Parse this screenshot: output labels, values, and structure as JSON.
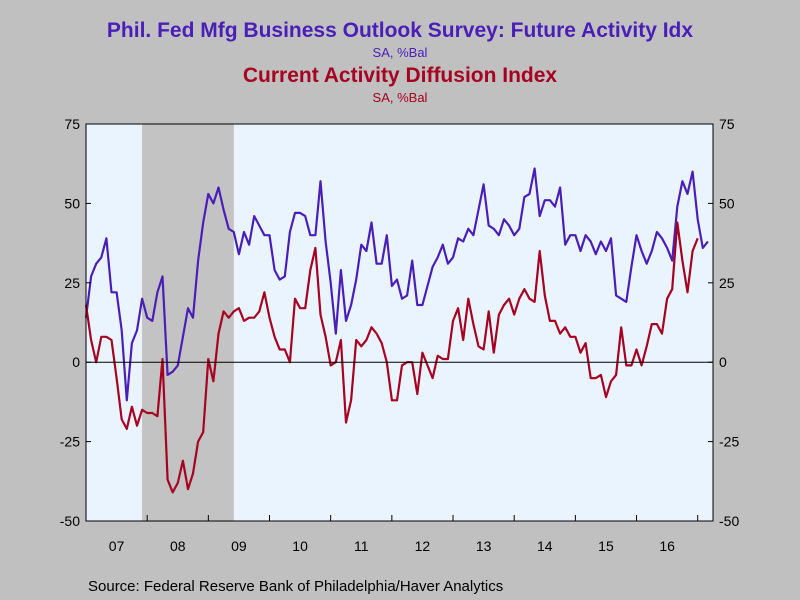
{
  "chart_data": {
    "type": "line",
    "title": "Phil. Fed Mfg Business Outlook Survey: Future Activity Idx",
    "title_subtitle": "SA, %Bal",
    "title2": "Current Activity Diffusion Index",
    "title2_subtitle": "SA, %Bal",
    "source": "Source:  Federal Reserve Bank of Philadelphia/Haver Analytics",
    "x_tick_labels": [
      "07",
      "08",
      "09",
      "10",
      "11",
      "12",
      "13",
      "14",
      "15",
      "16"
    ],
    "y_tick_labels": [
      "75",
      "50",
      "25",
      "0",
      "-25",
      "-50"
    ],
    "ylim": [
      -50,
      75
    ],
    "x_start": "2007-01",
    "x_end": "2017-04",
    "recession": {
      "start": "2007-12",
      "end": "2009-06"
    },
    "colors": {
      "future": "#4a1fb8",
      "current": "#a50021",
      "plot_bg": "#eaf4ff",
      "recession": "#c3c3c3",
      "title1": "#4a1fb8",
      "title2": "#a50021"
    },
    "series": [
      {
        "name": "Phil. Fed Mfg Business Outlook Survey: Future Activity Idx",
        "values": [
          14,
          27,
          31,
          33,
          39,
          22,
          22,
          10,
          -12,
          6,
          10,
          20,
          14,
          13,
          22,
          27,
          -4,
          -3,
          -1,
          8,
          17,
          14,
          32,
          44,
          53,
          50,
          55,
          48,
          42,
          41,
          34,
          41,
          37,
          46,
          43,
          40,
          40,
          29,
          26,
          27,
          41,
          47,
          47,
          46,
          40,
          40,
          57,
          38,
          25,
          9,
          29,
          13,
          18,
          26,
          37,
          35,
          44,
          31,
          31,
          40,
          24,
          26,
          20,
          21,
          32,
          18,
          18,
          24,
          30,
          33,
          37,
          31,
          33,
          39,
          38,
          42,
          40,
          48,
          56,
          43,
          42,
          40,
          45,
          43,
          40,
          42,
          52,
          53,
          61,
          46,
          51,
          51,
          49,
          55,
          37,
          40,
          40,
          35,
          40,
          38,
          34,
          38,
          35,
          39,
          21,
          20,
          19,
          30,
          40,
          35,
          31,
          35,
          41,
          39,
          36,
          32,
          49,
          57,
          53,
          60,
          45,
          36,
          38
        ]
      },
      {
        "name": "Current Activity Diffusion Index",
        "values": [
          18,
          7,
          0,
          8,
          8,
          7,
          -5,
          -18,
          -21,
          -14,
          -20,
          -15,
          -16,
          -16,
          -17,
          1,
          -37,
          -41,
          -38,
          -31,
          -40,
          -35,
          -25,
          -22,
          1,
          -6,
          9,
          16,
          14,
          16,
          17,
          13,
          14,
          14,
          16,
          22,
          14,
          8,
          4,
          4,
          0,
          20,
          17,
          17,
          29,
          36,
          15,
          8,
          -1,
          0,
          7,
          -19,
          -12,
          7,
          5,
          7,
          11,
          9,
          6,
          0,
          -12,
          -12,
          -1,
          0,
          0,
          -10,
          3,
          -1,
          -5,
          2,
          1,
          1,
          13,
          17,
          7,
          20,
          12,
          5,
          4,
          16,
          3,
          15,
          18,
          20,
          15,
          20,
          23,
          20,
          19,
          35,
          21,
          13,
          13,
          9,
          11,
          8,
          8,
          3,
          6,
          -5,
          -5,
          -4,
          -11,
          -6,
          -4,
          11,
          -1,
          -1,
          4,
          -1,
          5,
          12,
          12,
          9,
          20,
          23,
          44,
          32,
          22,
          35,
          39
        ]
      }
    ]
  }
}
